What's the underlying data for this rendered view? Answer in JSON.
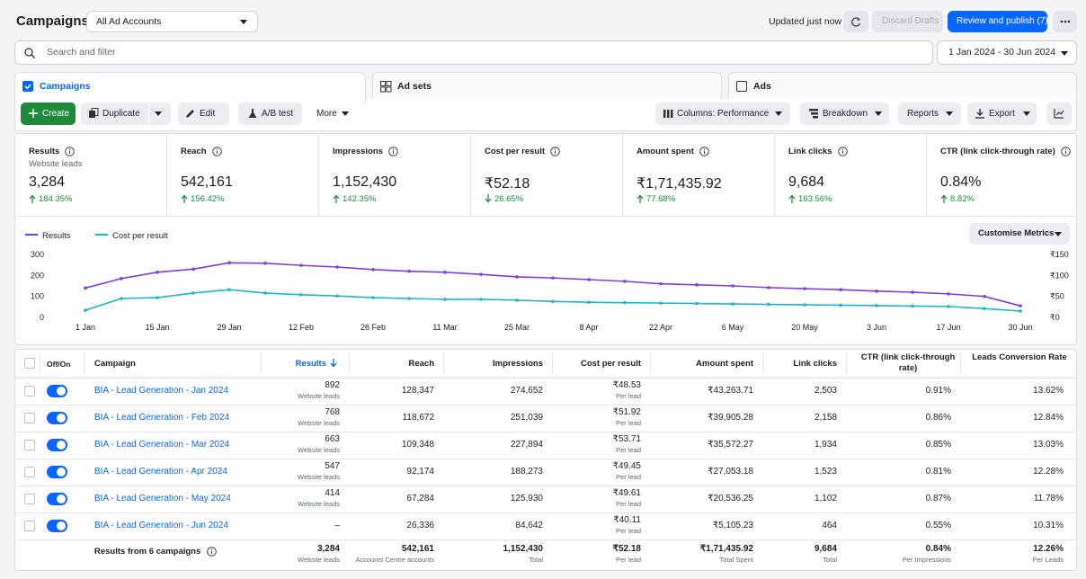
{
  "header": {
    "title": "Campaigns",
    "account": "All Ad Accounts",
    "status": "Updated just now",
    "discard": "Discard Drafts",
    "publish": "Review and publish (7)"
  },
  "search": {
    "placeholder": "Search and filter",
    "date_range": "1 Jan 2024 - 30 Jun 2024"
  },
  "tabs": [
    "Campaigns",
    "Ad sets",
    "Ads"
  ],
  "toolbar": {
    "create": "Create",
    "duplicate": "Duplicate",
    "edit": "Edit",
    "ab_test": "A/B test",
    "more": "More",
    "columns": "Columns: Performance",
    "breakdown": "Breakdown",
    "reports": "Reports",
    "export": "Export"
  },
  "metrics": [
    {
      "label": "Results",
      "sublabel": "Website leads",
      "value": "3,284",
      "change": "184.35%",
      "trend": "up"
    },
    {
      "label": "Reach",
      "value": "542,161",
      "change": "156.42%",
      "trend": "up"
    },
    {
      "label": "Impressions",
      "value": "1,152,430",
      "change": "142.35%",
      "trend": "up"
    },
    {
      "label": "Cost per result",
      "value": "₹52.18",
      "change": "26.65%",
      "trend": "down"
    },
    {
      "label": "Amount spent",
      "value": "₹1,71,435.92",
      "change": "77.68%",
      "trend": "up"
    },
    {
      "label": "Link clicks",
      "value": "9,684",
      "change": "163.56%",
      "trend": "up"
    },
    {
      "label": "CTR (link click-through rate)",
      "value": "0.84%",
      "change": "8.82%",
      "trend": "up"
    }
  ],
  "customise": "Customise Metrics",
  "chart_data": {
    "type": "line",
    "categories": [
      "1 Jan",
      null,
      "15 Jan",
      null,
      "29 Jan",
      null,
      "12 Feb",
      null,
      "26 Feb",
      null,
      "11 Mar",
      null,
      "25 Mar",
      null,
      "8 Apr",
      null,
      "22 Apr",
      null,
      "6 May",
      null,
      "20 May",
      null,
      "3 Jun",
      null,
      "17 Jun",
      null,
      "30 Jun"
    ],
    "series": [
      {
        "name": "Results",
        "color": "#7b3fe4",
        "values": [
          140,
          185,
          215,
          230,
          260,
          258,
          248,
          240,
          228,
          220,
          215,
          205,
          193,
          188,
          180,
          172,
          160,
          155,
          150,
          142,
          137,
          132,
          125,
          120,
          112,
          100,
          55
        ]
      },
      {
        "name": "Cost per result",
        "color": "#1fb5c6",
        "axis": "y2",
        "values": [
          17,
          45,
          47,
          58,
          66,
          58,
          54,
          51,
          47,
          45,
          43,
          43,
          41,
          38,
          36,
          35,
          34,
          33,
          32,
          31,
          30,
          29,
          28,
          27,
          26,
          21,
          15
        ]
      }
    ],
    "ylim": [
      0,
      300
    ],
    "yticks": [
      0,
      100,
      200,
      300
    ],
    "y2lim": [
      0,
      150
    ],
    "y2ticks": [
      {
        "value": 0,
        "label": "₹0"
      },
      {
        "value": 50,
        "label": "₹50"
      },
      {
        "value": 100,
        "label": "₹100"
      },
      {
        "value": 150,
        "label": "₹150"
      }
    ],
    "grid": false,
    "legend": "top-left"
  },
  "table": {
    "columns": [
      "Off/On",
      "Campaign",
      "Results",
      "Reach",
      "Impressions",
      "Cost per result",
      "Amount spent",
      "Link clicks",
      "CTR (link click-through rate)",
      "Leads Conversion Rate"
    ],
    "rows": [
      {
        "campaign": "BIA - Lead Generation - Jan 2024",
        "results": "892",
        "results_unit": "Website leads",
        "reach": "128,347",
        "impressions": "274,652",
        "cost": "₹48.53",
        "cost_unit": "Per lead",
        "amount": "₹43,263.71",
        "clicks": "2,503",
        "ctr": "0.91%",
        "lcr": "13.62%"
      },
      {
        "campaign": "BIA - Lead Generation - Feb 2024",
        "results": "768",
        "results_unit": "Website leads",
        "reach": "118,672",
        "impressions": "251,039",
        "cost": "₹51.92",
        "cost_unit": "Per lead",
        "amount": "₹39,905.28",
        "clicks": "2,158",
        "ctr": "0.86%",
        "lcr": "12.84%"
      },
      {
        "campaign": "BIA - Lead Generation - Mar 2024",
        "results": "663",
        "results_unit": "Website leads",
        "reach": "109,348",
        "impressions": "227,894",
        "cost": "₹53.71",
        "cost_unit": "Per lead",
        "amount": "₹35,572.27",
        "clicks": "1,934",
        "ctr": "0.85%",
        "lcr": "13.03%"
      },
      {
        "campaign": "BIA - Lead Generation - Apr 2024",
        "results": "547",
        "results_unit": "Website leads",
        "reach": "92,174",
        "impressions": "188,273",
        "cost": "₹49.45",
        "cost_unit": "Per lead",
        "amount": "₹27,053.18",
        "clicks": "1,523",
        "ctr": "0.81%",
        "lcr": "12.28%"
      },
      {
        "campaign": "BIA - Lead Generation - May 2024",
        "results": "414",
        "results_unit": "Website leads",
        "reach": "67,284",
        "impressions": "125,930",
        "cost": "₹49.61",
        "cost_unit": "Per lead",
        "amount": "₹20,536.25",
        "clicks": "1,102",
        "ctr": "0.87%",
        "lcr": "11.78%"
      },
      {
        "campaign": "BIA - Lead Generation - Jun 2024",
        "results": "–",
        "reach": "26,336",
        "impressions": "84,642",
        "cost": "₹40.11",
        "cost_unit": "Per lead",
        "amount": "₹5,105.23",
        "clicks": "464",
        "ctr": "0.55%",
        "lcr": "10.31%"
      }
    ],
    "total": {
      "label": "Results from 6 campaigns",
      "results": "3,284",
      "results_unit": "Website leads",
      "reach": "542,161",
      "reach_unit": "Accounts Centre accounts",
      "impressions": "1,152,430",
      "impressions_unit": "Total",
      "cost": "₹52.18",
      "cost_unit": "Per lead",
      "amount": "₹1,71,435.92",
      "amount_unit": "Total Spent",
      "clicks": "9,684",
      "clicks_unit": "Total",
      "ctr": "0.84%",
      "ctr_unit": "Per Impressions",
      "lcr": "12.26%",
      "lcr_unit": "Per Leads"
    }
  }
}
